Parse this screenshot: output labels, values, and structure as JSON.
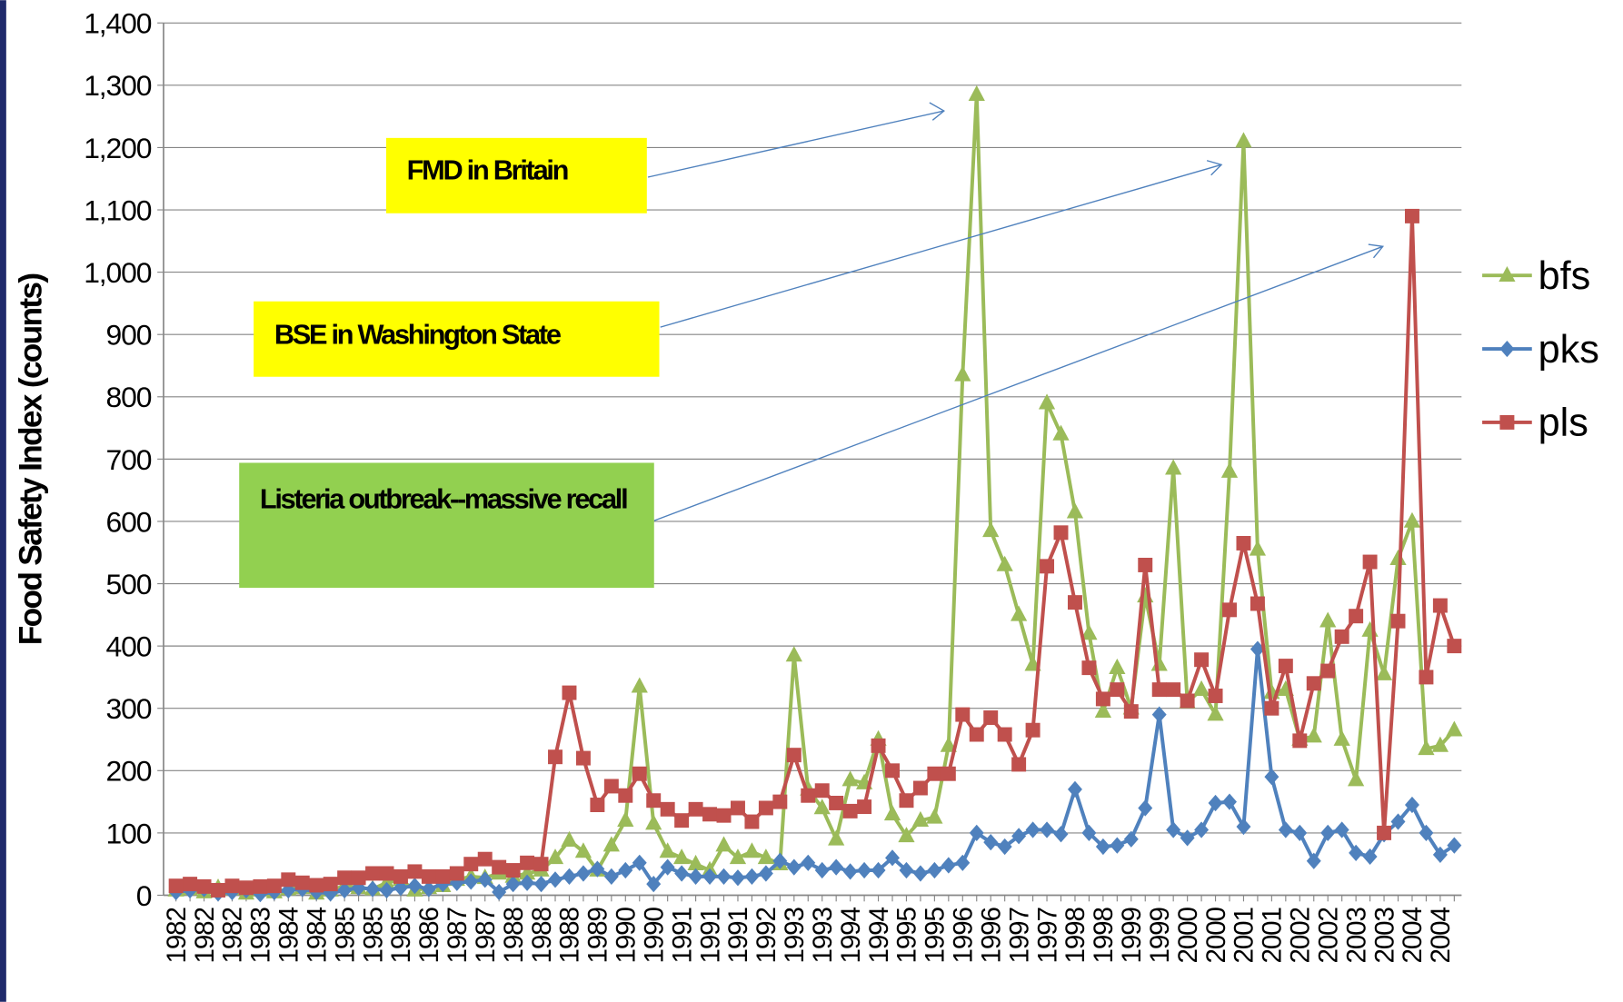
{
  "chart_data": {
    "type": "line",
    "ylabel": "Food Safety Index (counts)",
    "ylim": [
      0,
      1400
    ],
    "yticks": [
      0,
      100,
      200,
      300,
      400,
      500,
      600,
      700,
      800,
      900,
      {
        "value": 1000,
        "label": "1,000"
      },
      {
        "value": 1100,
        "label": "1,100"
      },
      {
        "value": 1200,
        "label": "1,200"
      },
      {
        "value": 1300,
        "label": "1,300"
      },
      {
        "value": 1400,
        "label": "1,400"
      }
    ],
    "grid": true,
    "legend": "right",
    "categories": [
      "1982",
      null,
      "1982",
      null,
      "1982",
      null,
      "1983",
      null,
      "1984",
      null,
      "1984",
      null,
      "1985",
      null,
      "1985",
      null,
      "1985",
      null,
      "1986",
      null,
      "1987",
      null,
      "1987",
      null,
      "1988",
      null,
      "1988",
      null,
      "1988",
      null,
      "1989",
      null,
      "1990",
      null,
      "1990",
      null,
      "1991",
      null,
      "1991",
      null,
      "1991",
      null,
      "1992",
      null,
      "1993",
      null,
      "1993",
      null,
      "1994",
      null,
      "1994",
      null,
      "1995",
      null,
      "1995",
      null,
      "1996",
      null,
      "1996",
      null,
      "1997",
      null,
      "1997",
      null,
      "1998",
      null,
      "1998",
      null,
      "1999",
      null,
      "1999",
      null,
      "2000",
      null,
      "2000",
      null,
      "2001",
      null,
      "2001",
      null,
      "2002",
      null,
      "2002",
      null,
      "2003",
      null,
      "2003",
      null,
      "2004",
      null,
      "2004",
      null
    ],
    "series": [
      {
        "name": "bfs",
        "color": "#9bbb59",
        "marker": "triangle",
        "values": [
          8,
          10,
          5,
          12,
          10,
          3,
          8,
          5,
          10,
          12,
          3,
          8,
          15,
          12,
          10,
          20,
          25,
          8,
          12,
          15,
          25,
          30,
          28,
          35,
          30,
          35,
          40,
          60,
          88,
          70,
          40,
          80,
          120,
          335,
          115,
          70,
          60,
          50,
          40,
          80,
          60,
          70,
          60,
          50,
          385,
          170,
          140,
          90,
          185,
          180,
          250,
          130,
          95,
          120,
          125,
          240,
          835,
          1285,
          585,
          530,
          450,
          370,
          790,
          740,
          615,
          420,
          295,
          365,
          300,
          480,
          370,
          685,
          310,
          330,
          290,
          680,
          1210,
          555,
          325,
          330,
          250,
          255,
          440,
          250,
          185,
          425,
          355,
          540,
          600,
          235,
          240,
          265
        ]
      },
      {
        "name": "pks",
        "color": "#4f81bd",
        "marker": "diamond",
        "values": [
          5,
          8,
          10,
          3,
          5,
          8,
          2,
          5,
          8,
          10,
          5,
          3,
          8,
          12,
          10,
          8,
          12,
          15,
          10,
          18,
          20,
          22,
          25,
          5,
          18,
          20,
          18,
          25,
          30,
          35,
          42,
          30,
          40,
          52,
          18,
          45,
          35,
          30,
          30,
          30,
          28,
          30,
          35,
          55,
          45,
          52,
          40,
          45,
          38,
          40,
          40,
          60,
          40,
          35,
          40,
          48,
          52,
          100,
          85,
          78,
          95,
          105,
          105,
          98,
          170,
          100,
          78,
          80,
          90,
          140,
          290,
          105,
          92,
          105,
          148,
          150,
          110,
          395,
          190,
          105,
          100,
          55,
          100,
          105,
          68,
          62,
          98,
          118,
          145,
          100,
          65,
          80
        ]
      },
      {
        "name": "pls",
        "color": "#c0504d",
        "marker": "square",
        "values": [
          15,
          18,
          14,
          8,
          15,
          12,
          14,
          15,
          25,
          20,
          16,
          18,
          28,
          28,
          35,
          35,
          30,
          38,
          30,
          30,
          35,
          50,
          58,
          45,
          40,
          52,
          50,
          222,
          325,
          220,
          145,
          175,
          160,
          195,
          152,
          138,
          120,
          138,
          130,
          128,
          140,
          118,
          140,
          150,
          225,
          160,
          168,
          148,
          135,
          142,
          240,
          200,
          152,
          172,
          195,
          195,
          290,
          258,
          285,
          258,
          210,
          265,
          528,
          582,
          470,
          365,
          315,
          330,
          295,
          530,
          330,
          330,
          312,
          378,
          320,
          458,
          565,
          468,
          300,
          368,
          248,
          340,
          360,
          415,
          448,
          535,
          100,
          440,
          1090,
          350,
          465,
          400
        ]
      }
    ],
    "annotations": [
      {
        "text": "FMD in Britain",
        "color": "#ffff00"
      },
      {
        "text": "BSE in Washington State",
        "color": "#ffff00"
      },
      {
        "text": "Listeria outbreak--massive recall",
        "color": "#92d050"
      }
    ]
  }
}
